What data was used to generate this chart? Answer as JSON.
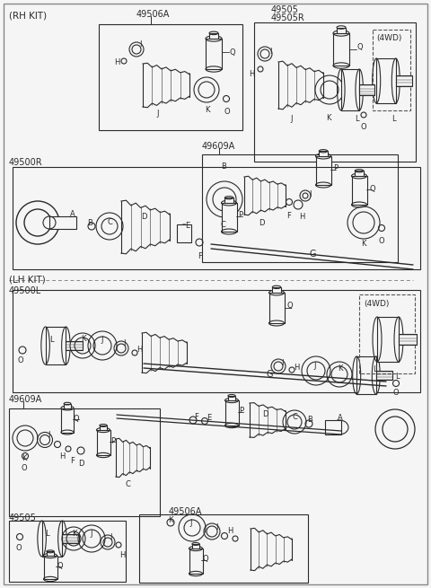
{
  "bg_color": "#f5f5f5",
  "line_color": "#2a2a2a",
  "text_color": "#2a2a2a",
  "fig_width": 4.8,
  "fig_height": 6.55,
  "dpi": 100,
  "labels": {
    "rh_kit": "(RH KIT)",
    "lh_kit": "(LH KIT)",
    "4wd": "(4WD)",
    "49506A_top": "49506A",
    "49500R": "49500R",
    "49505": "49505",
    "49505R": "49505R",
    "49609A_top": "49609A",
    "49500L": "49500L",
    "49609A_bot": "49609A",
    "49505_bot": "49505",
    "49506A_bot": "49506A"
  }
}
